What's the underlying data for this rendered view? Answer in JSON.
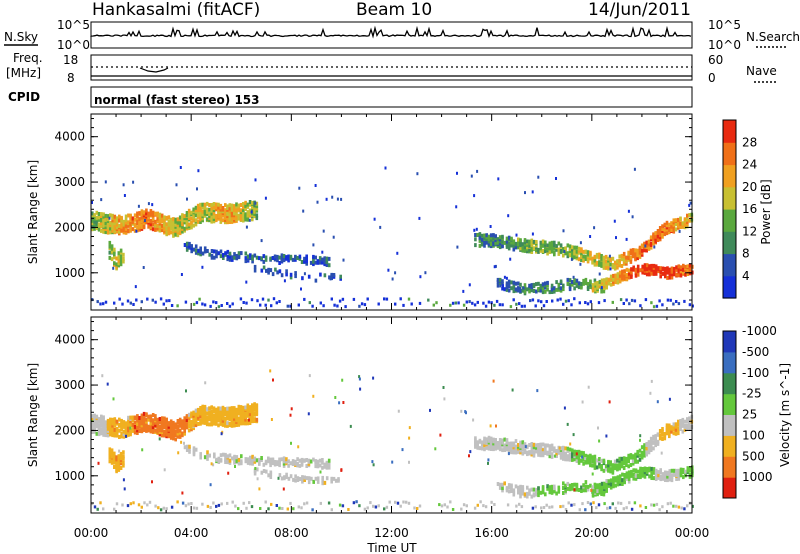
{
  "header": {
    "station": "Hankasalmi (fitACF)",
    "beam": "Beam 10",
    "date": "14/Jun/2011"
  },
  "strip_panels": {
    "nsky_label": "N.Sky",
    "nsky_ticks": [
      "10^5",
      "10^0"
    ],
    "nsearch_label": "N.Search",
    "nsearch_ticks": [
      "10^5",
      "10^0"
    ],
    "freq_label_1": "Freq.",
    "freq_label_2": "[MHz]",
    "freq_ticks": [
      "18",
      "8"
    ],
    "nave_label": "Nave",
    "nave_ticks": [
      "60",
      "0"
    ],
    "cpid_label": "CPID",
    "cpid_text": "normal (fast stereo) 153"
  },
  "chart_data": [
    {
      "type": "heatmap",
      "quantity": "Power",
      "ylabel": "Slant Range [km]",
      "ylim": [
        180,
        4500
      ],
      "yticks": [
        "1000",
        "2000",
        "3000",
        "4000"
      ],
      "colorbar_label": "Power [dB]",
      "colorbar_ticks": [
        "4",
        "8",
        "12",
        "16",
        "20",
        "24",
        "28"
      ],
      "colorbar_colors": [
        "#1530d8",
        "#2a4fb0",
        "#3f8a5a",
        "#5aa83e",
        "#c8c032",
        "#f0a020",
        "#f07018",
        "#e82a10"
      ]
    },
    {
      "type": "heatmap",
      "quantity": "Velocity",
      "ylabel": "Slant Range [km]",
      "ylim": [
        180,
        4500
      ],
      "yticks": [
        "1000",
        "2000",
        "3000",
        "4000"
      ],
      "colorbar_label": "Velocity [m s^-1]",
      "colorbar_ticks": [
        "1000",
        "500",
        "100",
        "25",
        "-25",
        "-100",
        "-500",
        "-1000"
      ],
      "colorbar_colors": [
        "#2038b8",
        "#3a6ec0",
        "#3c8c50",
        "#64c83c",
        "#c0c0c0",
        "#f0b020",
        "#f07820",
        "#e02010"
      ]
    }
  ],
  "x_axis": {
    "label": "Time UT",
    "ticks": [
      "00:00",
      "04:00",
      "08:00",
      "12:00",
      "16:00",
      "20:00",
      "00:00"
    ]
  }
}
